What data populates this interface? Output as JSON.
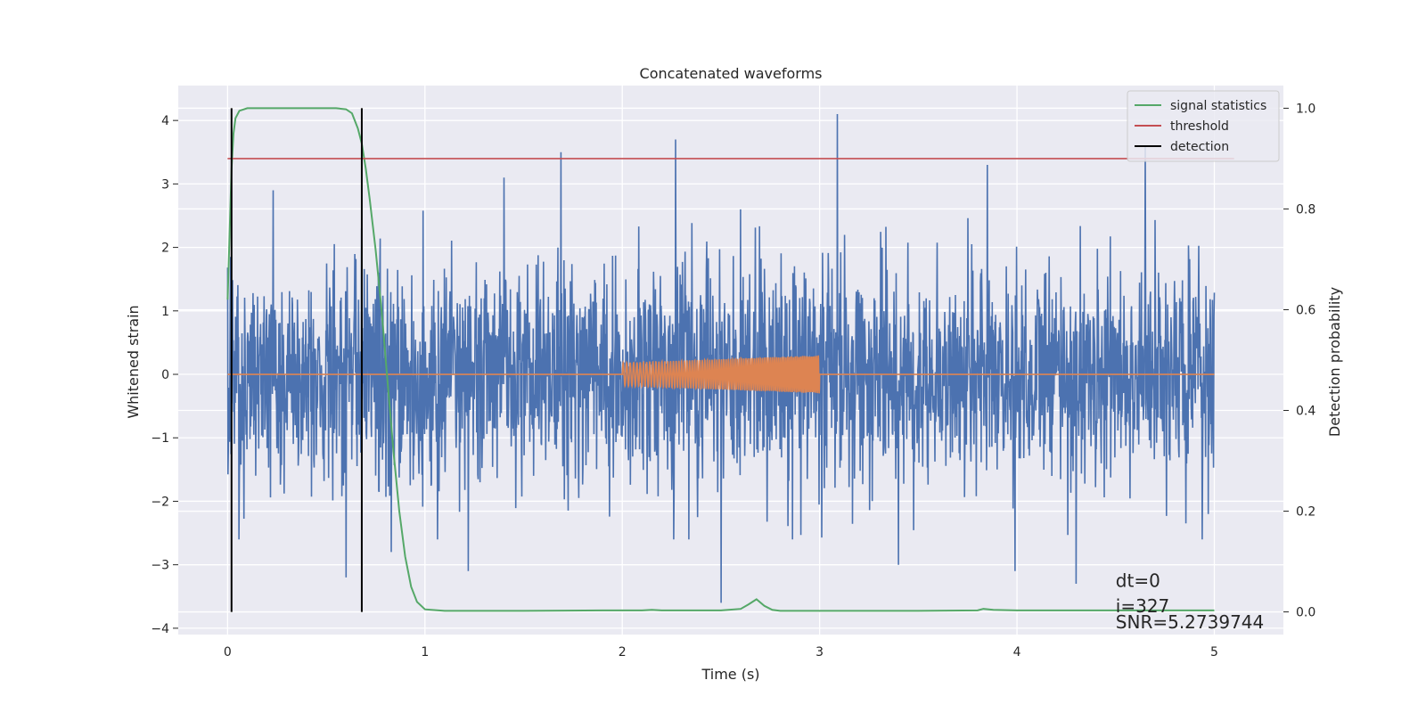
{
  "chart_data": {
    "type": "line",
    "title": "Concatenated waveforms",
    "xlabel": "Time (s)",
    "ylabel": "Whitened strain",
    "y2label": "Detection probability",
    "xlim": [
      -0.25,
      5.35
    ],
    "ylim": [
      -4.1,
      4.55
    ],
    "y2lim": [
      -0.045,
      1.045
    ],
    "xticks": [
      0,
      1,
      2,
      3,
      4,
      5
    ],
    "yticks": [
      -4,
      -3,
      -2,
      -1,
      0,
      1,
      2,
      3,
      4
    ],
    "y2ticks": [
      0.0,
      0.2,
      0.4,
      0.6,
      0.8,
      1.0
    ],
    "grid": true,
    "legend_position": "top-right",
    "series": [
      {
        "name": "",
        "kind": "whitened-noise",
        "color": "#4c72b0",
        "x_range": [
          0,
          5
        ],
        "typical_band": [
          -1.6,
          1.6
        ],
        "peaks": [
          {
            "x": 0.23,
            "y": 2.5
          },
          {
            "x": 0.23,
            "y": -2.0
          },
          {
            "x": 0.23,
            "y": 2.9
          },
          {
            "x": 0.6,
            "y": -3.2
          },
          {
            "x": 0.68,
            "y": 2.3
          },
          {
            "x": 0.83,
            "y": 2.8
          },
          {
            "x": 0.83,
            "y": -2.8
          },
          {
            "x": 1.22,
            "y": -3.1
          },
          {
            "x": 1.4,
            "y": 3.1
          },
          {
            "x": 1.69,
            "y": 3.5
          },
          {
            "x": 2.27,
            "y": 3.7
          },
          {
            "x": 2.5,
            "y": 3.0
          },
          {
            "x": 2.5,
            "y": -3.6
          },
          {
            "x": 2.6,
            "y": 2.6
          },
          {
            "x": 3.09,
            "y": 4.1
          },
          {
            "x": 3.4,
            "y": -3.0
          },
          {
            "x": 3.85,
            "y": 3.3
          },
          {
            "x": 3.99,
            "y": -3.1
          },
          {
            "x": 4.3,
            "y": -3.3
          },
          {
            "x": 4.65,
            "y": 3.6
          },
          {
            "x": 4.97,
            "y": -2.2
          }
        ]
      },
      {
        "name": "",
        "kind": "injected-chirp",
        "color": "#dd8452",
        "x_range": [
          0,
          5
        ],
        "chirp_start": 2.0,
        "chirp_end": 3.0,
        "amplitude_start": 0.18,
        "amplitude_end": 0.3
      },
      {
        "name": "signal statistics",
        "axis": "right",
        "color": "#55a868",
        "x": [
          0.0,
          0.01,
          0.02,
          0.03,
          0.04,
          0.06,
          0.1,
          0.2,
          0.4,
          0.55,
          0.6,
          0.63,
          0.66,
          0.68,
          0.7,
          0.72,
          0.75,
          0.78,
          0.81,
          0.84,
          0.87,
          0.9,
          0.93,
          0.96,
          1.0,
          1.1,
          1.5,
          1.9,
          2.1,
          2.15,
          2.2,
          2.5,
          2.6,
          2.64,
          2.68,
          2.72,
          2.76,
          2.8,
          3.5,
          3.8,
          3.83,
          3.88,
          4.0,
          5.0
        ],
        "y": [
          0.62,
          0.75,
          0.88,
          0.95,
          0.98,
          0.995,
          1.0,
          1.0,
          1.0,
          1.0,
          0.998,
          0.99,
          0.96,
          0.93,
          0.88,
          0.82,
          0.72,
          0.6,
          0.46,
          0.32,
          0.2,
          0.11,
          0.05,
          0.02,
          0.005,
          0.002,
          0.002,
          0.003,
          0.003,
          0.004,
          0.003,
          0.003,
          0.006,
          0.015,
          0.025,
          0.012,
          0.004,
          0.002,
          0.002,
          0.003,
          0.006,
          0.004,
          0.003,
          0.003
        ]
      },
      {
        "name": "threshold",
        "axis": "right",
        "color": "#c44e52",
        "x": [
          0,
          5.1
        ],
        "y": [
          0.9,
          0.9
        ]
      },
      {
        "name": "detection",
        "axis": "right",
        "color": "#000000",
        "x": [
          0.02,
          0.68
        ],
        "y_span": [
          0.0,
          1.0
        ]
      }
    ],
    "annotations": [
      {
        "text": "dt=0",
        "x": 4.5,
        "y": -3.35
      },
      {
        "text": "i=327",
        "x": 4.5,
        "y": -3.75
      },
      {
        "text": "SNR=5.2739744",
        "x": 4.5,
        "y": -4.0
      }
    ]
  }
}
